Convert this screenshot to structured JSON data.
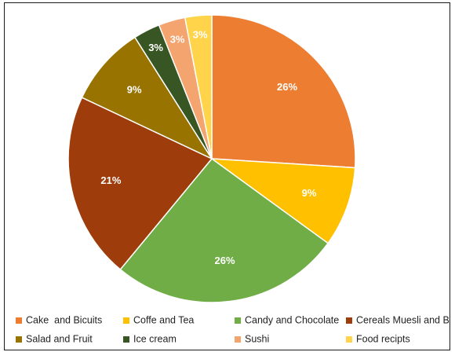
{
  "chart_data": {
    "type": "pie",
    "title": "",
    "legend_position": "bottom",
    "categories": [
      "Cake  and Bicuits",
      "Coffe and Tea",
      "Candy and Chocolate",
      "Cereals Muesli and Bar",
      "Salad and Fruit",
      "Ice cream",
      "Sushi",
      "Food recipts"
    ],
    "values": [
      26,
      9,
      26,
      21,
      9,
      3,
      3,
      3
    ],
    "labels": [
      "26%",
      "9%",
      "26%",
      "21%",
      "9%",
      "3%",
      "3%",
      "3%"
    ],
    "colors": [
      "#ED7D31",
      "#FFC000",
      "#70AD47",
      "#9E3D0B",
      "#997300",
      "#375623",
      "#F4A46F",
      "#FFD44A"
    ]
  }
}
